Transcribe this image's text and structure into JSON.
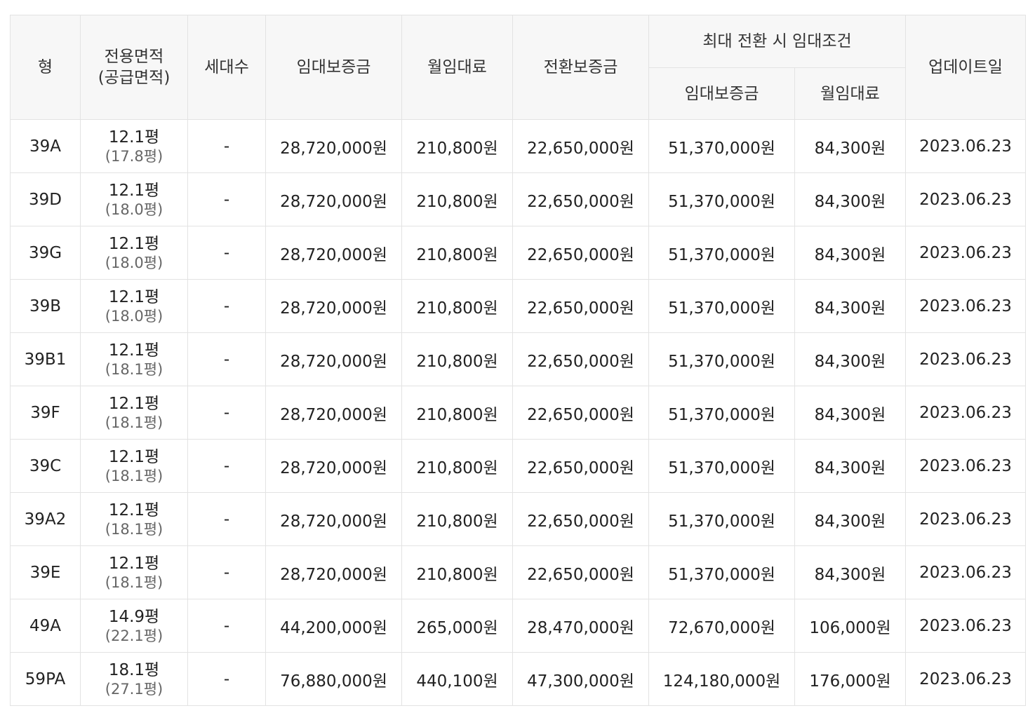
{
  "headers": {
    "type": "형",
    "area_line1": "전용면적",
    "area_line2": "(공급면적)",
    "households": "세대수",
    "deposit": "임대보증금",
    "monthly": "월임대료",
    "conv_deposit": "전환보증금",
    "max_group": "최대 전환 시 임대조건",
    "max_deposit": "임대보증금",
    "max_monthly": "월임대료",
    "updated": "업데이트일"
  },
  "rows": [
    {
      "type": "39A",
      "area": "12.1평",
      "supply": "(17.8평)",
      "households": "-",
      "deposit": "28,720,000원",
      "monthly": "210,800원",
      "conv_deposit": "22,650,000원",
      "max_deposit": "51,370,000원",
      "max_monthly": "84,300원",
      "updated": "2023.06.23"
    },
    {
      "type": "39D",
      "area": "12.1평",
      "supply": "(18.0평)",
      "households": "-",
      "deposit": "28,720,000원",
      "monthly": "210,800원",
      "conv_deposit": "22,650,000원",
      "max_deposit": "51,370,000원",
      "max_monthly": "84,300원",
      "updated": "2023.06.23"
    },
    {
      "type": "39G",
      "area": "12.1평",
      "supply": "(18.0평)",
      "households": "-",
      "deposit": "28,720,000원",
      "monthly": "210,800원",
      "conv_deposit": "22,650,000원",
      "max_deposit": "51,370,000원",
      "max_monthly": "84,300원",
      "updated": "2023.06.23"
    },
    {
      "type": "39B",
      "area": "12.1평",
      "supply": "(18.0평)",
      "households": "-",
      "deposit": "28,720,000원",
      "monthly": "210,800원",
      "conv_deposit": "22,650,000원",
      "max_deposit": "51,370,000원",
      "max_monthly": "84,300원",
      "updated": "2023.06.23"
    },
    {
      "type": "39B1",
      "area": "12.1평",
      "supply": "(18.1평)",
      "households": "-",
      "deposit": "28,720,000원",
      "monthly": "210,800원",
      "conv_deposit": "22,650,000원",
      "max_deposit": "51,370,000원",
      "max_monthly": "84,300원",
      "updated": "2023.06.23"
    },
    {
      "type": "39F",
      "area": "12.1평",
      "supply": "(18.1평)",
      "households": "-",
      "deposit": "28,720,000원",
      "monthly": "210,800원",
      "conv_deposit": "22,650,000원",
      "max_deposit": "51,370,000원",
      "max_monthly": "84,300원",
      "updated": "2023.06.23"
    },
    {
      "type": "39C",
      "area": "12.1평",
      "supply": "(18.1평)",
      "households": "-",
      "deposit": "28,720,000원",
      "monthly": "210,800원",
      "conv_deposit": "22,650,000원",
      "max_deposit": "51,370,000원",
      "max_monthly": "84,300원",
      "updated": "2023.06.23"
    },
    {
      "type": "39A2",
      "area": "12.1평",
      "supply": "(18.1평)",
      "households": "-",
      "deposit": "28,720,000원",
      "monthly": "210,800원",
      "conv_deposit": "22,650,000원",
      "max_deposit": "51,370,000원",
      "max_monthly": "84,300원",
      "updated": "2023.06.23"
    },
    {
      "type": "39E",
      "area": "12.1평",
      "supply": "(18.1평)",
      "households": "-",
      "deposit": "28,720,000원",
      "monthly": "210,800원",
      "conv_deposit": "22,650,000원",
      "max_deposit": "51,370,000원",
      "max_monthly": "84,300원",
      "updated": "2023.06.23"
    },
    {
      "type": "49A",
      "area": "14.9평",
      "supply": "(22.1평)",
      "households": "-",
      "deposit": "44,200,000원",
      "monthly": "265,000원",
      "conv_deposit": "28,470,000원",
      "max_deposit": "72,670,000원",
      "max_monthly": "106,000원",
      "updated": "2023.06.23"
    },
    {
      "type": "59PA",
      "area": "18.1평",
      "supply": "(27.1평)",
      "households": "-",
      "deposit": "76,880,000원",
      "monthly": "440,100원",
      "conv_deposit": "47,300,000원",
      "max_deposit": "124,180,000원",
      "max_monthly": "176,000원",
      "updated": "2023.06.23"
    }
  ]
}
